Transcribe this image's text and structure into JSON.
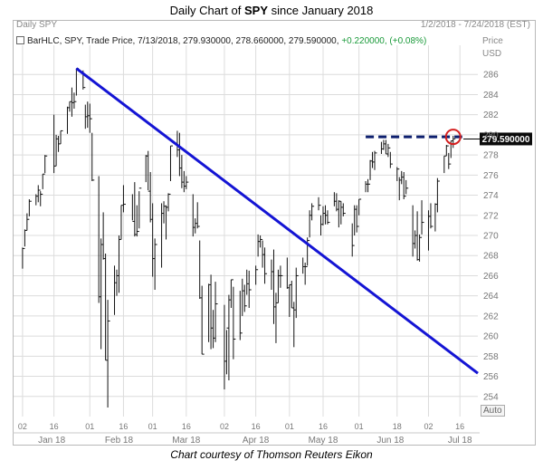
{
  "title": {
    "prefix": "Daily Chart of ",
    "symbol": "SPY",
    "suffix": " since January 2018"
  },
  "header": {
    "name": "Daily SPY",
    "date_range": "1/2/2018 - 7/24/2018 (EST)"
  },
  "info_bar": {
    "text": "BarHLC, SPY, Trade Price, 7/13/2018, 279.930000, 278.660000, 279.590000,",
    "change": "+0.220000, (+0.08%)"
  },
  "axis": {
    "price_label": "Price",
    "unit_label": "USD",
    "auto_label": "Auto"
  },
  "last_price_label": "279.590000",
  "caption": "Chart courtesy of Thomson Reuters Eikon",
  "colors": {
    "bars": "#111111",
    "trendline": "#1414d4",
    "resistance": "#0d1f6e",
    "up_change": "#1a9a3a",
    "circle": "#d42020",
    "grid": "#dcdcdc"
  },
  "chart_data": {
    "type": "bar",
    "style": "BarHLC",
    "ylim": [
      252,
      288
    ],
    "yticks": [
      254,
      256,
      258,
      260,
      262,
      264,
      266,
      268,
      270,
      272,
      274,
      276,
      278,
      280,
      282,
      284,
      286
    ],
    "xlim": [
      "2017-12-29",
      "2018-07-24"
    ],
    "day_ticks": [
      {
        "date": "2018-01-02",
        "label": "02"
      },
      {
        "date": "2018-01-16",
        "label": "16"
      },
      {
        "date": "2018-02-01",
        "label": "01"
      },
      {
        "date": "2018-02-16",
        "label": "16"
      },
      {
        "date": "2018-03-01",
        "label": "01"
      },
      {
        "date": "2018-03-16",
        "label": "16"
      },
      {
        "date": "2018-04-02",
        "label": "02"
      },
      {
        "date": "2018-04-16",
        "label": "16"
      },
      {
        "date": "2018-05-01",
        "label": "01"
      },
      {
        "date": "2018-05-16",
        "label": "16"
      },
      {
        "date": "2018-06-01",
        "label": "01"
      },
      {
        "date": "2018-06-18",
        "label": "18"
      },
      {
        "date": "2018-07-02",
        "label": "02"
      },
      {
        "date": "2018-07-16",
        "label": "16"
      }
    ],
    "month_labels": [
      {
        "date": "2018-01-15",
        "label": "Jan 18"
      },
      {
        "date": "2018-02-14",
        "label": "Feb 18"
      },
      {
        "date": "2018-03-16",
        "label": "Mar 18"
      },
      {
        "date": "2018-04-16",
        "label": "Apr 18"
      },
      {
        "date": "2018-05-16",
        "label": "May 18"
      },
      {
        "date": "2018-06-15",
        "label": "Jun 18"
      },
      {
        "date": "2018-07-16",
        "label": "Jul 18"
      }
    ],
    "bars": [
      {
        "d": "2018-01-02",
        "h": 268.8,
        "l": 266.7,
        "c": 268.7
      },
      {
        "d": "2018-01-03",
        "h": 270.6,
        "l": 268.9,
        "c": 270.5
      },
      {
        "d": "2018-01-04",
        "h": 272.2,
        "l": 270.5,
        "c": 271.6
      },
      {
        "d": "2018-01-05",
        "h": 273.6,
        "l": 271.9,
        "c": 273.4
      },
      {
        "d": "2018-01-08",
        "h": 274.1,
        "l": 273.0,
        "c": 273.9
      },
      {
        "d": "2018-01-09",
        "h": 275.0,
        "l": 273.3,
        "c": 274.5
      },
      {
        "d": "2018-01-10",
        "h": 274.4,
        "l": 272.9,
        "c": 274.1
      },
      {
        "d": "2018-01-11",
        "h": 276.1,
        "l": 274.6,
        "c": 276.1
      },
      {
        "d": "2018-01-12",
        "h": 278.0,
        "l": 276.2,
        "c": 277.9
      },
      {
        "d": "2018-01-16",
        "h": 282.0,
        "l": 276.2,
        "c": 276.9
      },
      {
        "d": "2018-01-17",
        "h": 280.0,
        "l": 276.9,
        "c": 279.6
      },
      {
        "d": "2018-01-18",
        "h": 279.9,
        "l": 278.3,
        "c": 279.1
      },
      {
        "d": "2018-01-19",
        "h": 280.4,
        "l": 279.1,
        "c": 280.4
      },
      {
        "d": "2018-01-22",
        "h": 282.8,
        "l": 280.1,
        "c": 282.7
      },
      {
        "d": "2018-01-23",
        "h": 283.3,
        "l": 282.3,
        "c": 283.3
      },
      {
        "d": "2018-01-24",
        "h": 284.7,
        "l": 281.8,
        "c": 283.2
      },
      {
        "d": "2018-01-25",
        "h": 284.2,
        "l": 282.6,
        "c": 283.3
      },
      {
        "d": "2018-01-26",
        "h": 286.6,
        "l": 283.9,
        "c": 286.6
      },
      {
        "d": "2018-01-29",
        "h": 286.4,
        "l": 284.5,
        "c": 284.7
      },
      {
        "d": "2018-01-30",
        "h": 283.0,
        "l": 280.6,
        "c": 281.8
      },
      {
        "d": "2018-01-31",
        "h": 283.3,
        "l": 280.7,
        "c": 281.9
      },
      {
        "d": "2018-02-01",
        "h": 283.1,
        "l": 280.2,
        "c": 281.6
      },
      {
        "d": "2018-02-02",
        "h": 280.2,
        "l": 275.4,
        "c": 275.5
      },
      {
        "d": "2018-02-05",
        "h": 275.9,
        "l": 263.3,
        "c": 263.9
      },
      {
        "d": "2018-02-06",
        "h": 269.7,
        "l": 258.7,
        "c": 269.1
      },
      {
        "d": "2018-02-07",
        "h": 272.3,
        "l": 267.6,
        "c": 267.7
      },
      {
        "d": "2018-02-08",
        "h": 268.2,
        "l": 257.6,
        "c": 257.6
      },
      {
        "d": "2018-02-09",
        "h": 263.6,
        "l": 252.9,
        "c": 261.5
      },
      {
        "d": "2018-02-12",
        "h": 267.0,
        "l": 262.1,
        "c": 265.3
      },
      {
        "d": "2018-02-13",
        "h": 266.6,
        "l": 264.0,
        "c": 266.0
      },
      {
        "d": "2018-02-14",
        "h": 270.0,
        "l": 264.3,
        "c": 269.6
      },
      {
        "d": "2018-02-15",
        "h": 273.0,
        "l": 269.6,
        "c": 273.0
      },
      {
        "d": "2018-02-16",
        "h": 275.0,
        "l": 272.3,
        "c": 273.1
      },
      {
        "d": "2018-02-20",
        "h": 274.1,
        "l": 271.5,
        "c": 271.4
      },
      {
        "d": "2018-02-21",
        "h": 275.3,
        "l": 269.9,
        "c": 270.1
      },
      {
        "d": "2018-02-22",
        "h": 273.0,
        "l": 269.9,
        "c": 270.4
      },
      {
        "d": "2018-02-23",
        "h": 274.4,
        "l": 270.7,
        "c": 274.7
      },
      {
        "d": "2018-02-26",
        "h": 278.0,
        "l": 275.3,
        "c": 277.9
      },
      {
        "d": "2018-02-27",
        "h": 278.4,
        "l": 274.5,
        "c": 274.4
      },
      {
        "d": "2018-02-28",
        "h": 276.3,
        "l": 271.3,
        "c": 271.6
      },
      {
        "d": "2018-03-01",
        "h": 273.2,
        "l": 265.9,
        "c": 267.7
      },
      {
        "d": "2018-03-02",
        "h": 269.7,
        "l": 264.6,
        "c": 269.1
      },
      {
        "d": "2018-03-05",
        "h": 273.2,
        "l": 266.8,
        "c": 272.2
      },
      {
        "d": "2018-03-06",
        "h": 273.4,
        "l": 271.2,
        "c": 272.9
      },
      {
        "d": "2018-03-07",
        "h": 273.0,
        "l": 269.6,
        "c": 272.8
      },
      {
        "d": "2018-03-08",
        "h": 274.2,
        "l": 272.4,
        "c": 274.1
      },
      {
        "d": "2018-03-09",
        "h": 278.9,
        "l": 275.4,
        "c": 278.9
      },
      {
        "d": "2018-03-12",
        "h": 280.4,
        "l": 277.8,
        "c": 278.5
      },
      {
        "d": "2018-03-13",
        "h": 280.2,
        "l": 275.9,
        "c": 276.7
      },
      {
        "d": "2018-03-14",
        "h": 278.0,
        "l": 274.7,
        "c": 275.3
      },
      {
        "d": "2018-03-15",
        "h": 276.4,
        "l": 274.3,
        "c": 274.9
      },
      {
        "d": "2018-03-16",
        "h": 275.9,
        "l": 274.6,
        "c": 275.3
      },
      {
        "d": "2018-03-19",
        "h": 274.1,
        "l": 269.9,
        "c": 270.8
      },
      {
        "d": "2018-03-20",
        "h": 271.7,
        "l": 270.2,
        "c": 271.2
      },
      {
        "d": "2018-03-21",
        "h": 273.3,
        "l": 270.7,
        "c": 270.9
      },
      {
        "d": "2018-03-22",
        "h": 269.5,
        "l": 263.7,
        "c": 263.8
      },
      {
        "d": "2018-03-23",
        "h": 265.0,
        "l": 258.2,
        "c": 258.2
      },
      {
        "d": "2018-03-26",
        "h": 265.2,
        "l": 259.4,
        "c": 265.1
      },
      {
        "d": "2018-03-27",
        "h": 266.1,
        "l": 258.7,
        "c": 260.8
      },
      {
        "d": "2018-03-28",
        "h": 262.6,
        "l": 258.8,
        "c": 259.8
      },
      {
        "d": "2018-03-29",
        "h": 265.4,
        "l": 259.4,
        "c": 263.2
      },
      {
        "d": "2018-04-02",
        "h": 263.1,
        "l": 254.7,
        "c": 257.5
      },
      {
        "d": "2018-04-03",
        "h": 260.6,
        "l": 256.2,
        "c": 260.8
      },
      {
        "d": "2018-04-04",
        "h": 264.1,
        "l": 255.6,
        "c": 263.6
      },
      {
        "d": "2018-04-05",
        "h": 265.6,
        "l": 262.8,
        "c": 265.6
      },
      {
        "d": "2018-04-06",
        "h": 264.9,
        "l": 257.7,
        "c": 259.7
      },
      {
        "d": "2018-04-09",
        "h": 264.5,
        "l": 259.6,
        "c": 260.3
      },
      {
        "d": "2018-04-10",
        "h": 265.7,
        "l": 262.0,
        "c": 264.5
      },
      {
        "d": "2018-04-11",
        "h": 265.1,
        "l": 262.4,
        "c": 263.0
      },
      {
        "d": "2018-04-12",
        "h": 266.6,
        "l": 264.1,
        "c": 265.2
      },
      {
        "d": "2018-04-13",
        "h": 266.5,
        "l": 262.8,
        "c": 264.6
      },
      {
        "d": "2018-04-16",
        "h": 267.0,
        "l": 265.1,
        "c": 266.6
      },
      {
        "d": "2018-04-17",
        "h": 270.1,
        "l": 267.9,
        "c": 269.4
      },
      {
        "d": "2018-04-18",
        "h": 270.0,
        "l": 268.8,
        "c": 269.6
      },
      {
        "d": "2018-04-19",
        "h": 269.5,
        "l": 266.8,
        "c": 268.1
      },
      {
        "d": "2018-04-20",
        "h": 268.8,
        "l": 265.2,
        "c": 266.2
      },
      {
        "d": "2018-04-23",
        "h": 267.6,
        "l": 264.6,
        "c": 266.4
      },
      {
        "d": "2018-04-24",
        "h": 268.6,
        "l": 261.2,
        "c": 262.9
      },
      {
        "d": "2018-04-25",
        "h": 264.3,
        "l": 259.3,
        "c": 263.3
      },
      {
        "d": "2018-04-26",
        "h": 266.6,
        "l": 263.3,
        "c": 266.0
      },
      {
        "d": "2018-04-27",
        "h": 267.0,
        "l": 264.8,
        "c": 266.0
      },
      {
        "d": "2018-04-30",
        "h": 267.8,
        "l": 264.7,
        "c": 264.8
      },
      {
        "d": "2018-05-01",
        "h": 265.1,
        "l": 261.9,
        "c": 265.1
      },
      {
        "d": "2018-05-02",
        "h": 265.5,
        "l": 262.8,
        "c": 262.8
      },
      {
        "d": "2018-05-03",
        "h": 263.4,
        "l": 258.9,
        "c": 262.6
      },
      {
        "d": "2018-05-04",
        "h": 266.8,
        "l": 261.8,
        "c": 266.0
      },
      {
        "d": "2018-05-07",
        "h": 267.8,
        "l": 266.2,
        "c": 266.9
      },
      {
        "d": "2018-05-08",
        "h": 267.3,
        "l": 265.1,
        "c": 266.9
      },
      {
        "d": "2018-05-09",
        "h": 269.8,
        "l": 267.0,
        "c": 269.5
      },
      {
        "d": "2018-05-10",
        "h": 272.5,
        "l": 269.8,
        "c": 272.0
      },
      {
        "d": "2018-05-11",
        "h": 273.2,
        "l": 271.5,
        "c": 272.9
      },
      {
        "d": "2018-05-14",
        "h": 273.8,
        "l": 272.5,
        "c": 273.0
      },
      {
        "d": "2018-05-15",
        "h": 272.0,
        "l": 270.0,
        "c": 271.1
      },
      {
        "d": "2018-05-16",
        "h": 272.9,
        "l": 271.0,
        "c": 272.2
      },
      {
        "d": "2018-05-17",
        "h": 273.0,
        "l": 271.1,
        "c": 272.0
      },
      {
        "d": "2018-05-18",
        "h": 272.5,
        "l": 271.1,
        "c": 271.3
      },
      {
        "d": "2018-05-21",
        "h": 274.3,
        "l": 272.9,
        "c": 273.4
      },
      {
        "d": "2018-05-22",
        "h": 274.2,
        "l": 272.4,
        "c": 272.6
      },
      {
        "d": "2018-05-23",
        "h": 273.5,
        "l": 270.8,
        "c": 273.4
      },
      {
        "d": "2018-05-24",
        "h": 273.4,
        "l": 271.1,
        "c": 272.8
      },
      {
        "d": "2018-05-25",
        "h": 273.2,
        "l": 271.9,
        "c": 272.2
      },
      {
        "d": "2018-05-29",
        "h": 271.2,
        "l": 267.9,
        "c": 269.0
      },
      {
        "d": "2018-05-30",
        "h": 273.0,
        "l": 270.0,
        "c": 272.6
      },
      {
        "d": "2018-05-31",
        "h": 273.0,
        "l": 270.3,
        "c": 270.9
      },
      {
        "d": "2018-06-01",
        "h": 273.6,
        "l": 272.0,
        "c": 273.6
      },
      {
        "d": "2018-06-04",
        "h": 275.4,
        "l": 274.3,
        "c": 275.1
      },
      {
        "d": "2018-06-05",
        "h": 275.6,
        "l": 274.3,
        "c": 275.1
      },
      {
        "d": "2018-06-06",
        "h": 277.5,
        "l": 275.5,
        "c": 277.4
      },
      {
        "d": "2018-06-07",
        "h": 278.3,
        "l": 276.7,
        "c": 277.3
      },
      {
        "d": "2018-06-08",
        "h": 278.4,
        "l": 276.5,
        "c": 278.2
      },
      {
        "d": "2018-06-11",
        "h": 279.3,
        "l": 278.1,
        "c": 278.6
      },
      {
        "d": "2018-06-12",
        "h": 279.5,
        "l": 278.5,
        "c": 279.1
      },
      {
        "d": "2018-06-13",
        "h": 279.5,
        "l": 278.1,
        "c": 278.1
      },
      {
        "d": "2018-06-14",
        "h": 279.1,
        "l": 277.8,
        "c": 278.7
      },
      {
        "d": "2018-06-15",
        "h": 278.3,
        "l": 276.7,
        "c": 277.1
      },
      {
        "d": "2018-06-18",
        "h": 276.8,
        "l": 275.4,
        "c": 276.6
      },
      {
        "d": "2018-06-19",
        "h": 275.8,
        "l": 273.5,
        "c": 275.5
      },
      {
        "d": "2018-06-20",
        "h": 276.4,
        "l": 275.1,
        "c": 275.8
      },
      {
        "d": "2018-06-21",
        "h": 276.3,
        "l": 273.6,
        "c": 273.9
      },
      {
        "d": "2018-06-22",
        "h": 275.5,
        "l": 274.1,
        "c": 274.7
      },
      {
        "d": "2018-06-25",
        "h": 273.0,
        "l": 267.9,
        "c": 269.2
      },
      {
        "d": "2018-06-26",
        "h": 270.5,
        "l": 268.7,
        "c": 270.0
      },
      {
        "d": "2018-06-27",
        "h": 272.4,
        "l": 267.5,
        "c": 267.6
      },
      {
        "d": "2018-06-28",
        "h": 270.1,
        "l": 267.4,
        "c": 269.8
      },
      {
        "d": "2018-06-29",
        "h": 273.5,
        "l": 270.1,
        "c": 271.3
      },
      {
        "d": "2018-07-02",
        "h": 272.5,
        "l": 268.5,
        "c": 271.9
      },
      {
        "d": "2018-07-03",
        "h": 273.2,
        "l": 270.7,
        "c": 270.9
      },
      {
        "d": "2018-07-05",
        "h": 273.2,
        "l": 270.4,
        "c": 273.1
      },
      {
        "d": "2018-07-06",
        "h": 275.7,
        "l": 272.3,
        "c": 275.4
      },
      {
        "d": "2018-07-09",
        "h": 277.9,
        "l": 276.2,
        "c": 277.9
      },
      {
        "d": "2018-07-10",
        "h": 279.0,
        "l": 277.9,
        "c": 278.9
      },
      {
        "d": "2018-07-11",
        "h": 278.2,
        "l": 276.6,
        "c": 277.1
      },
      {
        "d": "2018-07-12",
        "h": 279.4,
        "l": 277.7,
        "c": 279.4
      },
      {
        "d": "2018-07-13",
        "h": 279.9,
        "l": 278.7,
        "c": 279.6
      }
    ],
    "annotations": [
      {
        "kind": "trendline",
        "from": {
          "d": "2018-01-26",
          "p": 286.6
        },
        "to": {
          "d": "2018-07-24",
          "p": 256.3
        }
      },
      {
        "kind": "resistance",
        "from": {
          "d": "2018-06-04",
          "p": 279.8
        },
        "to": {
          "d": "2018-07-13",
          "p": 279.8
        }
      },
      {
        "kind": "circle",
        "at": {
          "d": "2018-07-13",
          "p": 279.8
        }
      }
    ],
    "last_price": 279.59
  }
}
